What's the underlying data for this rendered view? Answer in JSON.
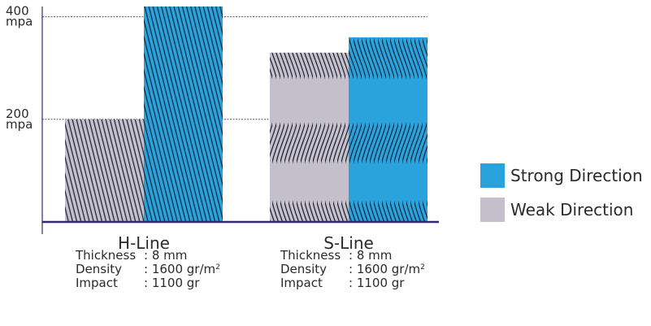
{
  "chart_data": {
    "type": "bar",
    "categories": [
      "H-Line",
      "S-Line"
    ],
    "series": [
      {
        "name": "Weak Direction",
        "values": [
          200,
          330
        ],
        "color": "#c3c0cc",
        "pattern": "diagonal-lines"
      },
      {
        "name": "Strong Direction",
        "values": [
          420,
          360
        ],
        "color": "#2aa3dc",
        "pattern_by_category": [
          "diagonal-lines",
          "wavy-lines"
        ]
      }
    ],
    "series_patterns_by_category": [
      "straight",
      "wavy"
    ],
    "ylim": [
      0,
      420
    ],
    "gridlines": [
      200,
      400
    ],
    "tick_labels": [
      {
        "value": 400,
        "line1": "400",
        "line2": "mpa"
      },
      {
        "value": 200,
        "line1": "200",
        "line2": "mpa"
      }
    ],
    "legend": {
      "placement": "right",
      "entries": [
        {
          "label": "Strong Direction",
          "color": "#2aa3dc"
        },
        {
          "label": "Weak Direction",
          "color": "#c3c0cc"
        }
      ]
    },
    "title": "",
    "xlabel": "",
    "ylabel": ""
  },
  "specs": [
    {
      "category": "H-Line",
      "rows": [
        {
          "key": "Thickness",
          "value": ": 8 mm",
          "sup": ""
        },
        {
          "key": "Density",
          "value": ": 1600 gr/m",
          "sup": "2"
        },
        {
          "key": "Impact",
          "value": ": 1100 gr",
          "sup": ""
        }
      ]
    },
    {
      "category": "S-Line",
      "rows": [
        {
          "key": "Thickness",
          "value": ": 8 mm",
          "sup": ""
        },
        {
          "key": "Density",
          "value": ": 1600 gr/m",
          "sup": "2"
        },
        {
          "key": "Impact",
          "value": ": 1100 gr",
          "sup": ""
        }
      ]
    }
  ],
  "colors": {
    "axis": "#2e2a6e",
    "grid": "#555555",
    "stripe": "#1a1a2a"
  }
}
